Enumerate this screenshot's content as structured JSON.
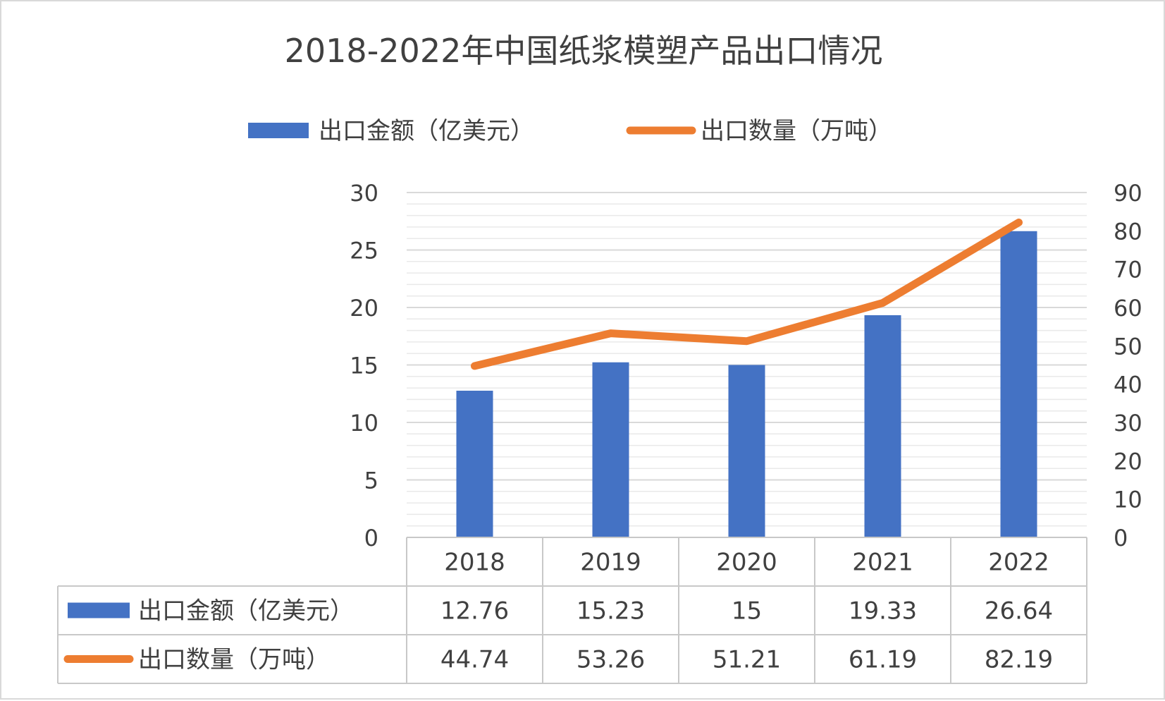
{
  "chart_data": {
    "type": "bar",
    "title": "2018-2022年中国纸浆模塑产品出口情况",
    "categories": [
      "2018",
      "2019",
      "2020",
      "2021",
      "2022"
    ],
    "series": [
      {
        "name": "出口金额（亿美元）",
        "type": "bar",
        "axis": "left",
        "color": "#4472C4",
        "values": [
          12.76,
          15.23,
          15,
          19.33,
          26.64
        ],
        "labels": [
          "12.76",
          "15.23",
          "15",
          "19.33",
          "26.64"
        ]
      },
      {
        "name": "出口数量（万吨）",
        "type": "line",
        "axis": "right",
        "color": "#ED7D31",
        "values": [
          44.74,
          53.26,
          51.21,
          61.19,
          82.19
        ],
        "labels": [
          "44.74",
          "53.26",
          "51.21",
          "61.19",
          "82.19"
        ]
      }
    ],
    "y_left": {
      "min": 0,
      "max": 30,
      "ticks": [
        "0",
        "5",
        "10",
        "15",
        "20",
        "25",
        "30"
      ]
    },
    "y_right": {
      "min": 0,
      "max": 90,
      "ticks": [
        "0",
        "10",
        "20",
        "30",
        "40",
        "50",
        "60",
        "70",
        "80",
        "90"
      ]
    },
    "grid": true,
    "legend": "top",
    "data_table": true
  }
}
